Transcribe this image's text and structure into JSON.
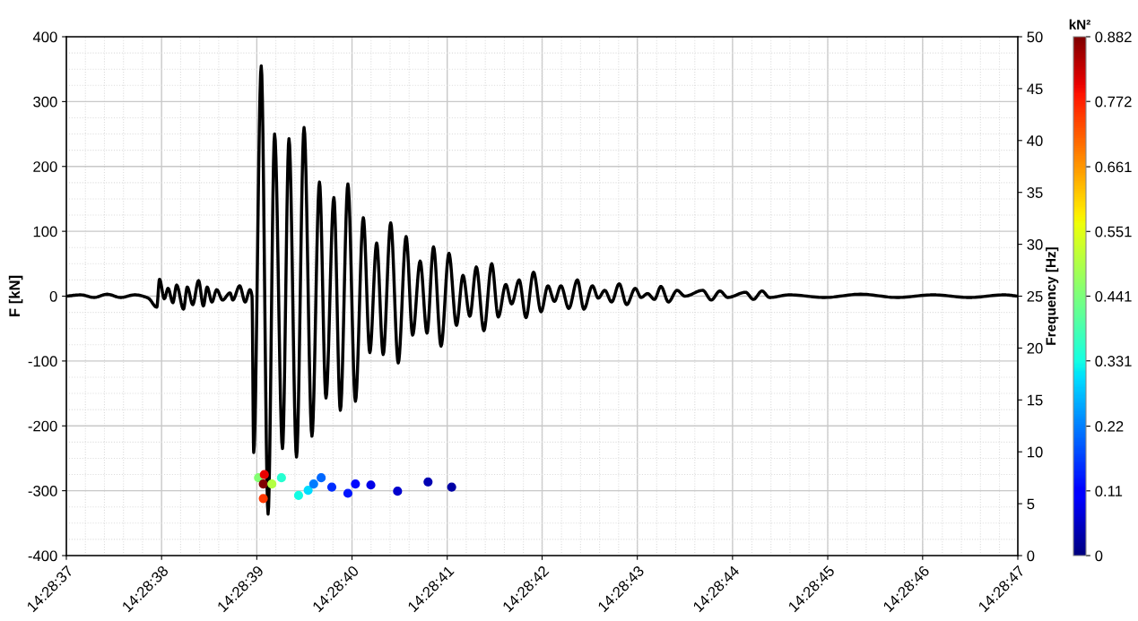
{
  "chart_data": {
    "type": "line",
    "ylabel": "F [kN]",
    "y2label": "Frequency [Hz]",
    "clabel": "kN²",
    "xlim": [
      14.476944,
      14.479722
    ],
    "xticks": [
      {
        "value": 14.476944,
        "label": "14:28:37"
      },
      {
        "value": 14.477222,
        "label": "14:28:38"
      },
      {
        "value": 14.4775,
        "label": "14:28:39"
      },
      {
        "value": 14.477778,
        "label": "14:28:40"
      },
      {
        "value": 14.478056,
        "label": "14:28:41"
      },
      {
        "value": 14.478333,
        "label": "14:28:42"
      },
      {
        "value": 14.478611,
        "label": "14:28:43"
      },
      {
        "value": 14.478889,
        "label": "14:28:44"
      },
      {
        "value": 14.479167,
        "label": "14:28:45"
      },
      {
        "value": 14.479444,
        "label": "14:28:46"
      },
      {
        "value": 14.479722,
        "label": "14:28:47"
      }
    ],
    "ylim": [
      -400,
      400
    ],
    "yticks": [
      -400,
      -300,
      -200,
      -100,
      0,
      100,
      200,
      300,
      400
    ],
    "y2lim": [
      0,
      50
    ],
    "y2ticks": [
      0,
      5,
      10,
      15,
      20,
      25,
      30,
      35,
      40,
      45,
      50
    ],
    "clim": [
      0,
      0.882
    ],
    "cticks": [
      0,
      0.11,
      0.22,
      0.331,
      0.441,
      0.551,
      0.661,
      0.772,
      0.882
    ],
    "grid": true,
    "legend": false,
    "line_style": "solid",
    "marker": "none",
    "series": [
      {
        "color": "#000000",
        "x": [
          14.476944,
          14.476986,
          14.477025,
          14.477063,
          14.477102,
          14.477144,
          14.477183,
          14.477208,
          14.477216,
          14.47723,
          14.477241,
          14.477255,
          14.477266,
          14.477286,
          14.477297,
          14.477313,
          14.47733,
          14.477344,
          14.477355,
          14.477369,
          14.477383,
          14.4774,
          14.477422,
          14.47743,
          14.47745,
          14.477466,
          14.47748,
          14.477486,
          14.477491,
          14.477513,
          14.477533,
          14.477552,
          14.477575,
          14.477594,
          14.477616,
          14.477638,
          14.477661,
          14.477683,
          14.477702,
          14.477725,
          14.477744,
          14.477766,
          14.477788,
          14.477811,
          14.47783,
          14.47785,
          14.477869,
          14.477891,
          14.477913,
          14.477936,
          14.477955,
          14.477977,
          14.477997,
          14.478016,
          14.478038,
          14.478061,
          14.478083,
          14.478102,
          14.478122,
          14.478141,
          14.478163,
          14.478186,
          14.478205,
          14.478227,
          14.478244,
          14.478266,
          14.478286,
          14.478308,
          14.47833,
          14.47835,
          14.478369,
          14.478388,
          14.478411,
          14.478436,
          14.478455,
          14.47848,
          14.478497,
          14.478516,
          14.478536,
          14.478558,
          14.47858,
          14.478605,
          14.478622,
          14.478641,
          14.478661,
          14.47868,
          14.478702,
          14.478727,
          14.47875,
          14.478802,
          14.478827,
          14.478852,
          14.478875,
          14.478927,
          14.47895,
          14.478975,
          14.478997,
          14.479055,
          14.479158,
          14.479263,
          14.479369,
          14.479475,
          14.47958,
          14.479683,
          14.479722
        ],
        "values": [
          0,
          2,
          -2,
          3,
          -2,
          2,
          -3,
          -17,
          26,
          -4,
          12,
          -10,
          17,
          -20,
          14,
          -13,
          24,
          -15,
          14,
          -9,
          10,
          -6,
          5,
          -6,
          16,
          -9,
          10,
          0,
          -241,
          355,
          -336,
          250,
          -235,
          243,
          -248,
          260,
          -216,
          176,
          -157,
          152,
          -176,
          173,
          -162,
          121,
          -87,
          82,
          -90,
          113,
          -103,
          92,
          -60,
          54,
          -57,
          76,
          -77,
          66,
          -45,
          32,
          -31,
          45,
          -53,
          50,
          -32,
          18,
          -12,
          25,
          -33,
          37,
          -24,
          16,
          -8,
          16,
          -19,
          25,
          -20,
          16,
          -3,
          9,
          -9,
          19,
          -13,
          12,
          -2,
          4,
          -5,
          15,
          -9,
          9,
          0,
          9,
          -6,
          8,
          -2,
          6,
          -5,
          8,
          -2,
          2,
          -2,
          3,
          -2,
          2,
          -2,
          2,
          0
        ]
      },
      {
        "type": "scatter",
        "axis": "y2",
        "marker": "circle",
        "colors": [
          "#84ff73",
          "#820000",
          "#eb0300",
          "#ff3900",
          "#b3ff44",
          "#27ffd1",
          "#14fee3",
          "#00dbff",
          "#007fff",
          "#0068ff",
          "#002eff",
          "#0017ff",
          "#000bff",
          "#0000e8",
          "#0000ce",
          "#0000b3",
          "#0000a6"
        ],
        "x": [
          14.477505,
          14.477519,
          14.477522,
          14.477519,
          14.477544,
          14.477572,
          14.477622,
          14.47765,
          14.477666,
          14.477688,
          14.477719,
          14.477766,
          14.477788,
          14.477833,
          14.477911,
          14.478,
          14.478069
        ],
        "values": [
          7.5,
          6.9,
          7.8,
          5.5,
          6.9,
          7.5,
          5.8,
          6.3,
          6.9,
          7.5,
          6.6,
          6.0,
          6.9,
          6.8,
          6.2,
          7.1,
          6.6
        ],
        "cvalues": [
          0.45,
          0.88,
          0.8,
          0.75,
          0.5,
          0.35,
          0.33,
          0.3,
          0.22,
          0.2,
          0.15,
          0.13,
          0.12,
          0.08,
          0.06,
          0.04,
          0.03
        ]
      }
    ]
  }
}
